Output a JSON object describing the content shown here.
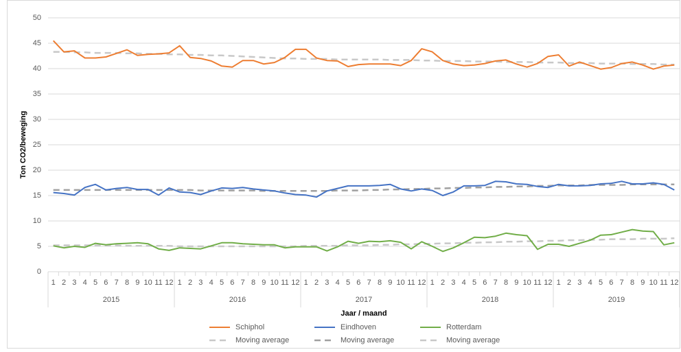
{
  "chart_data": {
    "type": "line",
    "y_label": "Ton CO2/beweging",
    "x_label": "Jaar / maand",
    "categories": [
      1,
      2,
      3,
      4,
      5,
      6,
      7,
      8,
      9,
      10,
      11,
      12,
      1,
      2,
      3,
      4,
      5,
      6,
      7,
      8,
      9,
      10,
      11,
      12,
      1,
      2,
      3,
      4,
      5,
      6,
      7,
      8,
      9,
      10,
      11,
      12,
      1,
      2,
      3,
      4,
      5,
      6,
      7,
      8,
      9,
      10,
      11,
      12,
      1,
      2,
      3,
      4,
      5,
      6,
      7,
      8,
      9,
      10,
      11,
      12
    ],
    "year_labels": [
      "2015",
      "2016",
      "2017",
      "2018",
      "2019"
    ],
    "ylim": [
      0,
      50
    ],
    "yticks": [
      0,
      5,
      10,
      15,
      20,
      25,
      30,
      35,
      40,
      45,
      50
    ],
    "grid": true,
    "legend": "bottom",
    "series": [
      {
        "name": "Schiphol",
        "color": "#ed7d31",
        "dashed": false,
        "values": [
          45.5,
          43.3,
          43.5,
          42.1,
          42.1,
          42.3,
          43.0,
          43.7,
          42.6,
          42.8,
          42.9,
          43.1,
          44.5,
          42.2,
          42.0,
          41.5,
          40.5,
          40.3,
          41.6,
          41.6,
          40.9,
          41.2,
          42.2,
          43.8,
          43.8,
          42.1,
          41.6,
          41.5,
          40.4,
          40.8,
          40.9,
          40.9,
          40.9,
          40.6,
          41.6,
          43.9,
          43.3,
          41.6,
          40.9,
          40.6,
          40.7,
          41.0,
          41.5,
          41.7,
          40.9,
          40.3,
          41.0,
          42.4,
          42.7,
          40.5,
          41.3,
          40.6,
          39.9,
          40.2,
          41.0,
          41.3,
          40.7,
          39.9,
          40.5,
          40.7
        ]
      },
      {
        "name": "Eindhoven",
        "color": "#4472c4",
        "dashed": false,
        "values": [
          15.6,
          15.4,
          15.1,
          16.6,
          17.2,
          16.1,
          16.4,
          16.6,
          16.2,
          16.2,
          15.1,
          16.5,
          15.7,
          15.6,
          15.2,
          15.9,
          16.5,
          16.4,
          16.6,
          16.3,
          16.1,
          15.9,
          15.5,
          15.2,
          15.1,
          14.7,
          15.9,
          16.4,
          16.9,
          16.9,
          16.9,
          17.0,
          17.2,
          16.3,
          15.9,
          16.3,
          16.0,
          15.0,
          15.7,
          16.9,
          16.9,
          17.0,
          17.8,
          17.7,
          17.3,
          17.2,
          16.8,
          16.6,
          17.2,
          16.9,
          16.9,
          17.0,
          17.3,
          17.4,
          17.8,
          17.3,
          17.3,
          17.5,
          17.2,
          16.1
        ]
      },
      {
        "name": "Rotterdam",
        "color": "#70ad47",
        "dashed": false,
        "values": [
          5.1,
          4.7,
          5.0,
          4.8,
          5.6,
          5.3,
          5.5,
          5.6,
          5.7,
          5.5,
          4.5,
          4.2,
          4.7,
          4.6,
          4.5,
          5.1,
          5.7,
          5.7,
          5.5,
          5.4,
          5.3,
          5.3,
          4.7,
          4.9,
          4.9,
          4.9,
          4.1,
          4.9,
          6.0,
          5.6,
          6.0,
          5.9,
          6.1,
          5.8,
          4.5,
          5.9,
          5.0,
          4.0,
          4.7,
          5.7,
          6.8,
          6.7,
          7.0,
          7.6,
          7.3,
          7.1,
          4.4,
          5.4,
          5.4,
          5.0,
          5.6,
          6.2,
          7.2,
          7.3,
          7.8,
          8.3,
          8.0,
          7.9,
          5.3,
          5.7
        ]
      },
      {
        "name": "Moving average",
        "color": "#c8c8c8",
        "dashed": true,
        "values": [
          43.3,
          43.3,
          43.2,
          43.2,
          43.1,
          43.1,
          43.1,
          43.0,
          43.0,
          42.9,
          42.9,
          42.8,
          42.8,
          42.7,
          42.7,
          42.6,
          42.6,
          42.5,
          42.4,
          42.3,
          42.2,
          42.1,
          42.0,
          42.0,
          41.9,
          41.9,
          41.9,
          41.8,
          41.8,
          41.8,
          41.8,
          41.8,
          41.7,
          41.7,
          41.7,
          41.6,
          41.6,
          41.5,
          41.5,
          41.5,
          41.4,
          41.4,
          41.4,
          41.3,
          41.3,
          41.3,
          41.2,
          41.2,
          41.2,
          41.1,
          41.1,
          41.1,
          41.0,
          41.0,
          41.0,
          40.9,
          40.9,
          40.9,
          40.8,
          40.8
        ]
      },
      {
        "name": "Moving average",
        "color": "#a0a0a0",
        "dashed": true,
        "values": [
          16.1,
          16.1,
          16.1,
          16.1,
          16.1,
          16.1,
          16.1,
          16.1,
          16.1,
          16.1,
          16.1,
          16.1,
          16.1,
          16.1,
          16.0,
          16.0,
          16.0,
          16.0,
          16.0,
          16.0,
          15.9,
          15.9,
          15.9,
          15.9,
          15.9,
          15.9,
          15.9,
          16.0,
          16.0,
          16.0,
          16.1,
          16.1,
          16.2,
          16.2,
          16.3,
          16.3,
          16.4,
          16.4,
          16.5,
          16.5,
          16.6,
          16.6,
          16.7,
          16.7,
          16.8,
          16.8,
          16.9,
          16.9,
          17.0,
          17.0,
          17.0,
          17.1,
          17.1,
          17.1,
          17.1,
          17.2,
          17.2,
          17.2,
          17.2,
          17.2
        ]
      },
      {
        "name": "Moving average",
        "color": "#c8c8c8",
        "dashed": true,
        "values": [
          5.2,
          5.2,
          5.2,
          5.2,
          5.2,
          5.2,
          5.2,
          5.1,
          5.1,
          5.1,
          5.1,
          5.1,
          5.0,
          5.0,
          5.0,
          5.0,
          5.0,
          5.0,
          5.0,
          5.0,
          5.0,
          5.0,
          5.0,
          5.0,
          5.1,
          5.1,
          5.1,
          5.1,
          5.2,
          5.2,
          5.2,
          5.3,
          5.3,
          5.4,
          5.4,
          5.5,
          5.5,
          5.6,
          5.6,
          5.7,
          5.7,
          5.8,
          5.8,
          5.9,
          5.9,
          6.0,
          6.0,
          6.1,
          6.1,
          6.2,
          6.2,
          6.3,
          6.3,
          6.4,
          6.4,
          6.4,
          6.5,
          6.5,
          6.5,
          6.6
        ]
      }
    ]
  }
}
